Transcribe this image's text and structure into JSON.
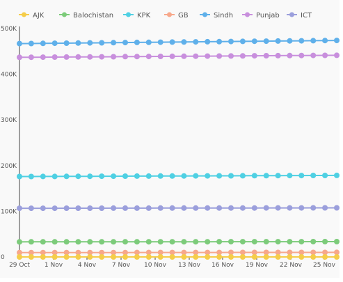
{
  "chart_data": {
    "type": "line",
    "title": "",
    "xlabel": "",
    "ylabel": "",
    "ylim": [
      0,
      500000
    ],
    "x_tick_labels": [
      "29 Oct",
      "1 Nov",
      "4 Nov",
      "7 Nov",
      "10 Nov",
      "13 Nov",
      "16 Nov",
      "19 Nov",
      "22 Nov",
      "25 Nov"
    ],
    "y_tick_labels": [
      "0",
      "100K",
      "200K",
      "300K",
      "400K",
      "500K"
    ],
    "y_ticks": [
      0,
      100000,
      200000,
      300000,
      400000,
      500000
    ],
    "legend_position": "top",
    "grid": false,
    "point_count": 28,
    "series": [
      {
        "name": "AJK",
        "color": "#f5cd4a",
        "start": 0,
        "end": 0
      },
      {
        "name": "Balochistan",
        "color": "#7ccb7a",
        "start": 33000,
        "end": 33500
      },
      {
        "name": "KPK",
        "color": "#4fd0e3",
        "start": 176000,
        "end": 178500
      },
      {
        "name": "GB",
        "color": "#f7a88b",
        "start": 9500,
        "end": 10000
      },
      {
        "name": "Sindh",
        "color": "#5fb0ea",
        "start": 467000,
        "end": 474000
      },
      {
        "name": "Punjab",
        "color": "#c88fdd",
        "start": 437000,
        "end": 441500
      },
      {
        "name": "ICT",
        "color": "#9b9fdc",
        "start": 106500,
        "end": 107500
      }
    ]
  }
}
